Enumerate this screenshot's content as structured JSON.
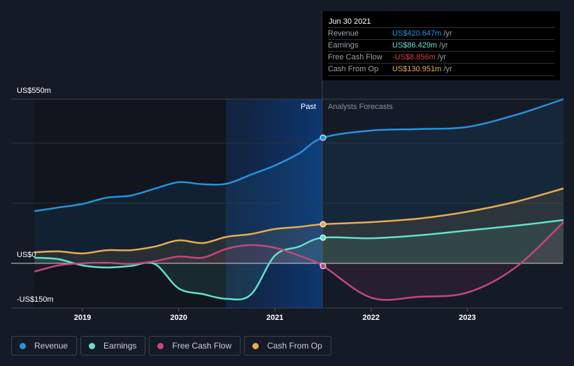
{
  "tooltip": {
    "date": "Jun 30 2021",
    "rows": [
      {
        "label": "Revenue",
        "value": "US$420.647m",
        "unit": "/yr",
        "color": "#2394df"
      },
      {
        "label": "Earnings",
        "value": "US$86.429m",
        "unit": "/yr",
        "color": "#64e0cc"
      },
      {
        "label": "Free Cash Flow",
        "value": "-US$8.856m",
        "unit": "/yr",
        "color": "#e2383f"
      },
      {
        "label": "Cash From Op",
        "value": "US$130.951m",
        "unit": "/yr",
        "color": "#e8ac52"
      }
    ]
  },
  "chart_data": {
    "type": "line",
    "ylim": [
      -150,
      550
    ],
    "y_tick_labels": [
      "US$550m",
      "US$0",
      "-US$150m"
    ],
    "x_tick_labels": [
      "2019",
      "2020",
      "2021",
      "2022",
      "2023"
    ],
    "past_label": "Past",
    "forecast_label": "Analysts Forecasts",
    "divider_x": 2021.5,
    "x": [
      2018.5,
      2018.75,
      2019,
      2019.25,
      2019.5,
      2019.75,
      2020,
      2020.25,
      2020.5,
      2020.75,
      2021,
      2021.25,
      2021.5,
      2022,
      2022.5,
      2023,
      2023.5,
      2024
    ],
    "series": [
      {
        "name": "Revenue",
        "color": "#2394df",
        "values": [
          175,
          187,
          199,
          220,
          227,
          250,
          272,
          265,
          267,
          297,
          328,
          368,
          421,
          445,
          450,
          457,
          497,
          550
        ]
      },
      {
        "name": "Earnings",
        "color": "#64e0cc",
        "values": [
          19,
          14,
          -7,
          -14,
          -9,
          -2,
          -84,
          -103,
          -119,
          -105,
          26,
          56,
          86,
          84,
          94,
          110,
          126,
          145
        ]
      },
      {
        "name": "Free Cash Flow",
        "color": "#c4477f",
        "values": [
          -28,
          -7,
          0,
          2,
          -2,
          7,
          23,
          19,
          49,
          61,
          52,
          26,
          -9,
          -115,
          -112,
          -98,
          -14,
          138
        ]
      },
      {
        "name": "Cash From Op",
        "color": "#e8ac52",
        "values": [
          37,
          40,
          33,
          44,
          44,
          56,
          77,
          68,
          89,
          98,
          115,
          122,
          131,
          138,
          150,
          173,
          206,
          251
        ]
      }
    ]
  },
  "legend": [
    "Revenue",
    "Earnings",
    "Free Cash Flow",
    "Cash From Op"
  ]
}
